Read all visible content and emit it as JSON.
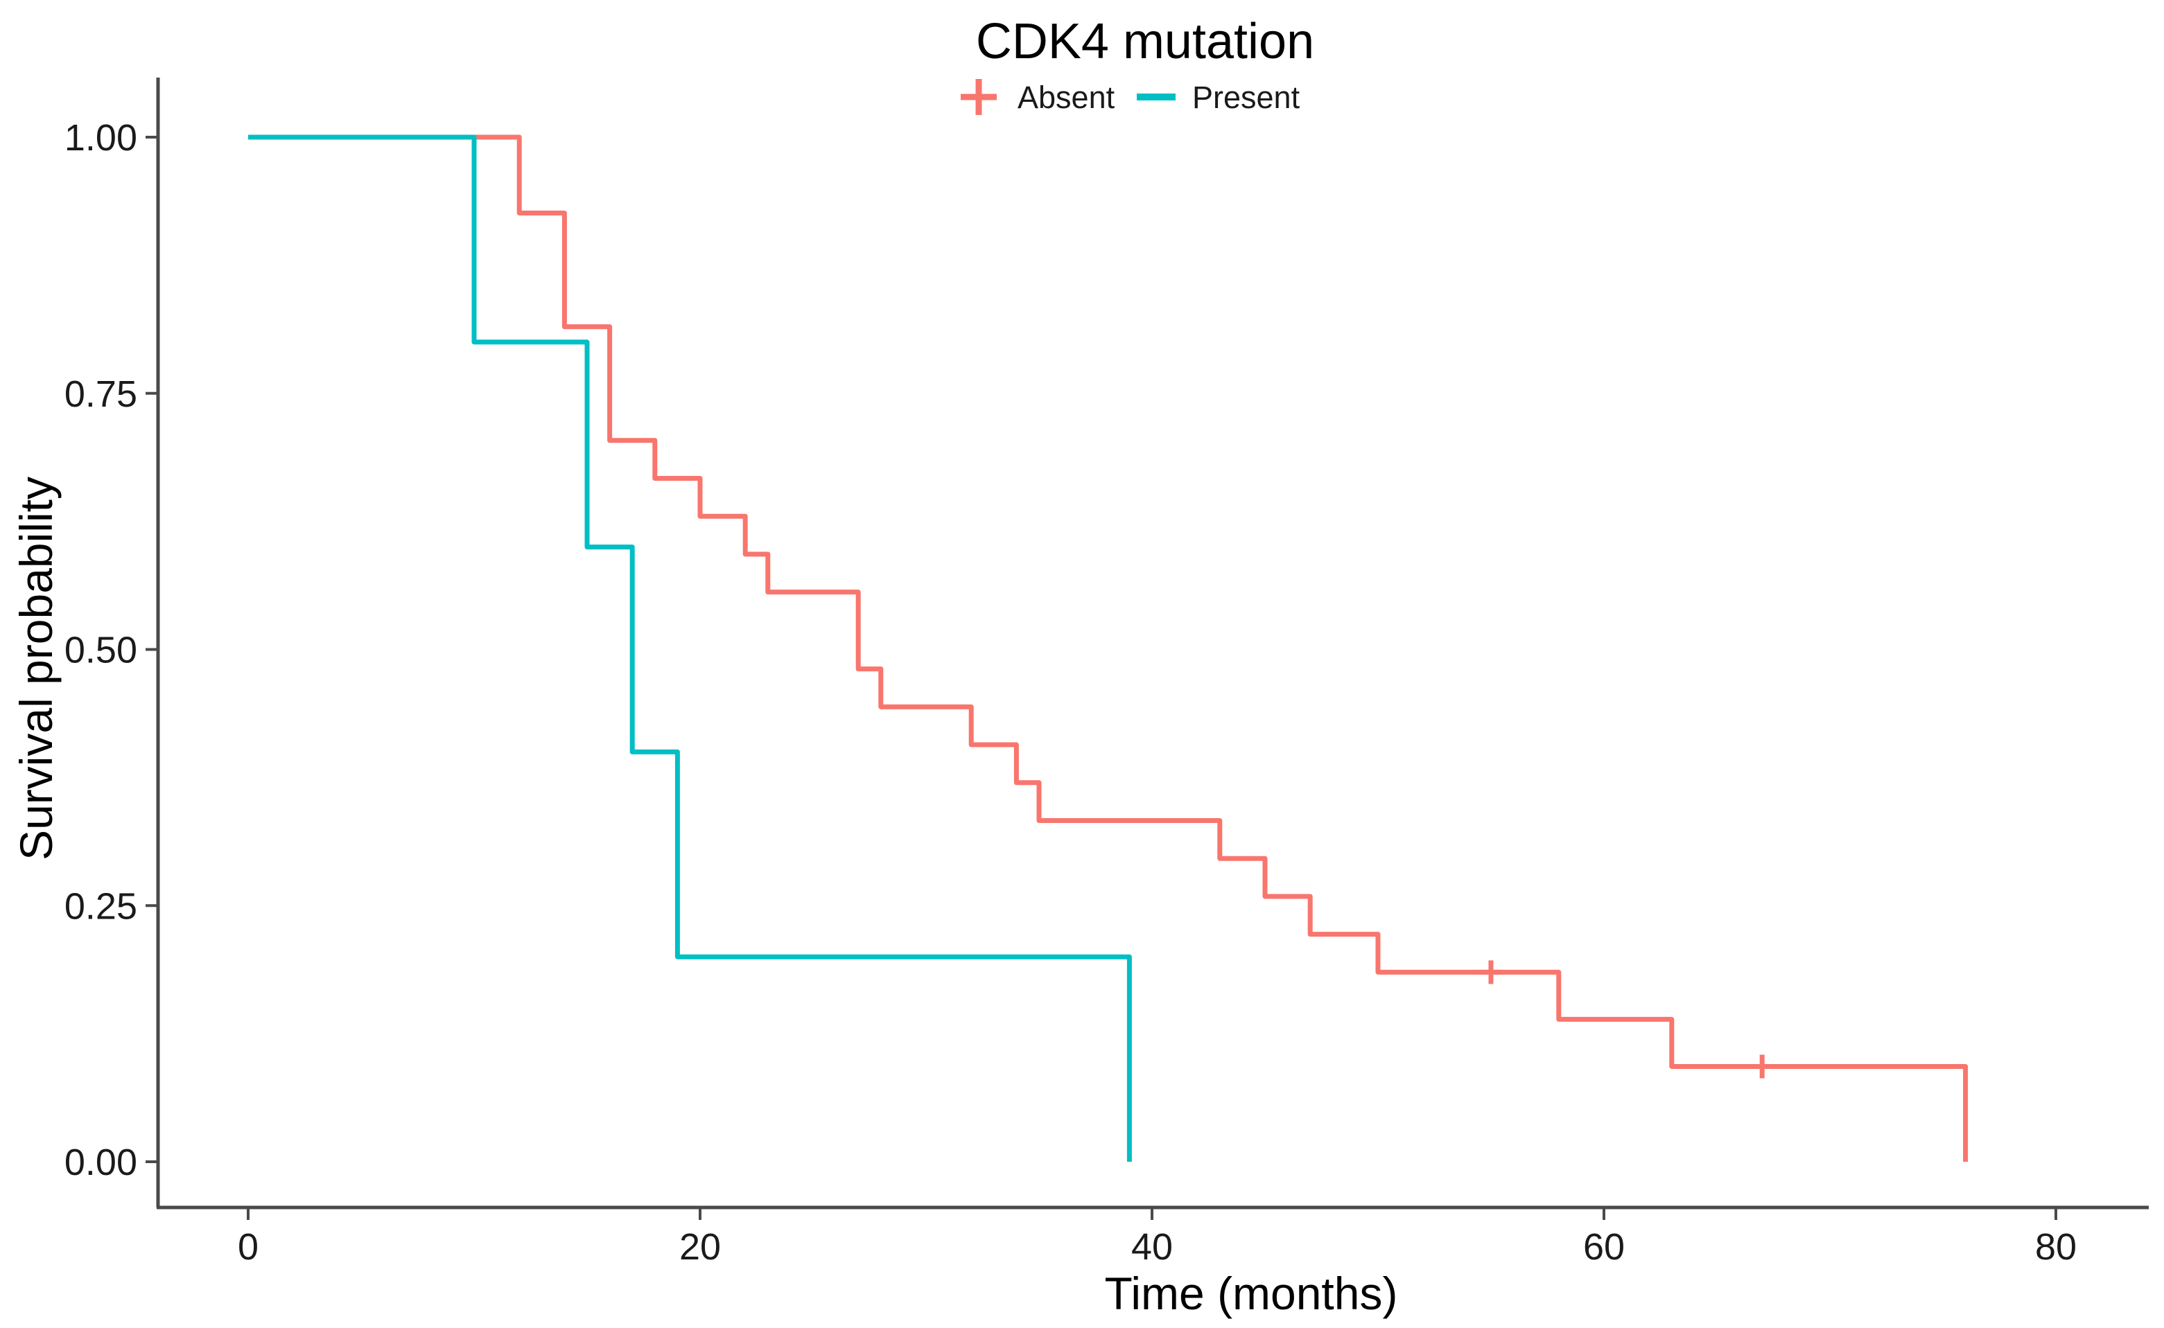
{
  "chart_data": {
    "type": "line",
    "subtype": "kaplan-meier-step-curve",
    "title": "CDK4 mutation",
    "xlabel": "Time (months)",
    "ylabel": "Survival probability",
    "xlim": [
      0,
      80
    ],
    "ylim": [
      0,
      1
    ],
    "x_ticks": [
      0,
      20,
      40,
      60,
      80
    ],
    "x_tick_labels": [
      "0",
      "20",
      "40",
      "60",
      "80"
    ],
    "y_ticks": [
      0,
      0.25,
      0.5,
      0.75,
      1
    ],
    "y_tick_labels": [
      "0.00",
      "0.25",
      "0.50",
      "0.75",
      "1.00"
    ],
    "grid": "off",
    "legend_position": "top-center",
    "axis_color": "#4a4a4a",
    "background_color": "#ffffff",
    "series": [
      {
        "name": "Absent",
        "color": "#F8766D",
        "legend_marker": "plus",
        "steps": [
          [
            0,
            1.0
          ],
          [
            12,
            0.926
          ],
          [
            14,
            0.815
          ],
          [
            16,
            0.704
          ],
          [
            18,
            0.667
          ],
          [
            20,
            0.63
          ],
          [
            22,
            0.593
          ],
          [
            23,
            0.556
          ],
          [
            27,
            0.481
          ],
          [
            28,
            0.444
          ],
          [
            32,
            0.407
          ],
          [
            34,
            0.37
          ],
          [
            35,
            0.333
          ],
          [
            43,
            0.296
          ],
          [
            45,
            0.259
          ],
          [
            47,
            0.222
          ],
          [
            50,
            0.185
          ],
          [
            58,
            0.139
          ],
          [
            63,
            0.093
          ],
          [
            76,
            0.0
          ]
        ],
        "censor_marks": [
          [
            55,
            0.185
          ],
          [
            67,
            0.093
          ]
        ]
      },
      {
        "name": "Present",
        "color": "#00BFC4",
        "legend_marker": "line",
        "steps": [
          [
            0,
            1.0
          ],
          [
            10,
            0.8
          ],
          [
            15,
            0.6
          ],
          [
            17,
            0.4
          ],
          [
            19,
            0.2
          ],
          [
            39,
            0.0
          ]
        ],
        "censor_marks": []
      }
    ]
  }
}
